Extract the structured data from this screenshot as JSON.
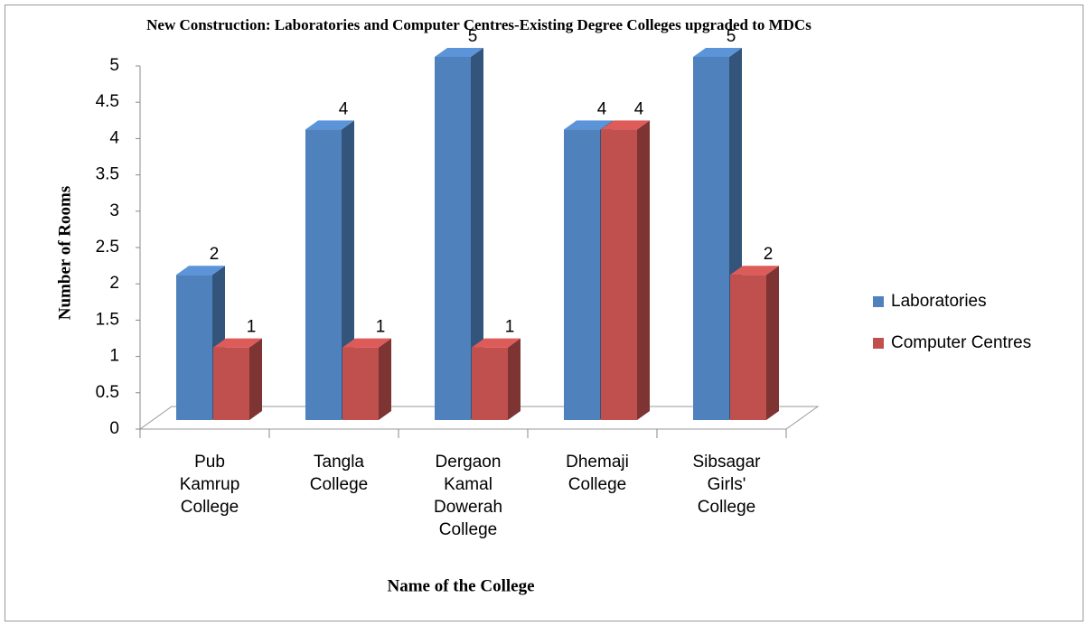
{
  "chart_data": {
    "type": "bar3d",
    "title": "New Construction: Laboratories and Computer Centres-Existing Degree Colleges upgraded to MDCs",
    "x_label": "Name of the College",
    "y_label": "Number of Rooms",
    "categories": [
      "Pub Kamrup College",
      "Tangla College",
      "Dergaon Kamal Dowerah College",
      "Dhemaji College",
      "Sibsagar Girls' College"
    ],
    "series": [
      {
        "name": "Laboratories",
        "color": "#4f81bd",
        "values": [
          2,
          4,
          5,
          4,
          5
        ]
      },
      {
        "name": "Computer Centres",
        "color": "#c0504d",
        "values": [
          1,
          1,
          1,
          4,
          2
        ]
      }
    ],
    "ylim": [
      0,
      5
    ],
    "yticks": [
      0,
      0.5,
      1,
      1.5,
      2,
      2.5,
      3,
      3.5,
      4,
      4.5,
      5
    ],
    "legend": "right"
  }
}
